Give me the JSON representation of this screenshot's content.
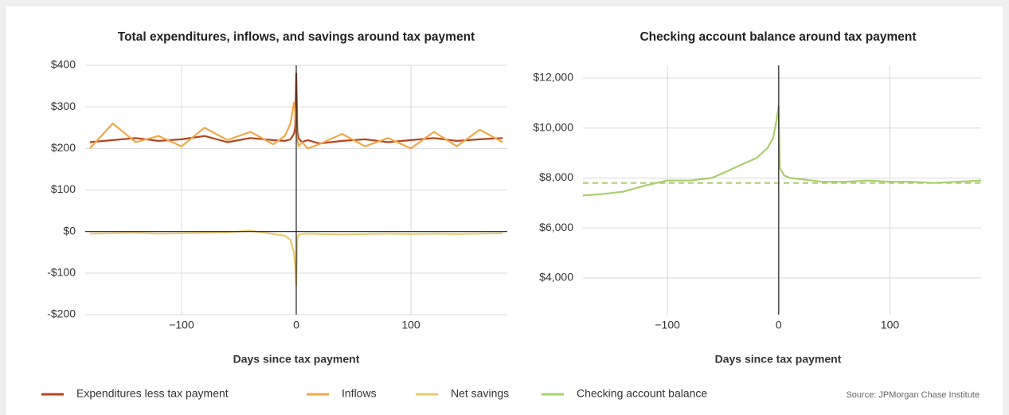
{
  "chart_data": [
    {
      "type": "line",
      "title": "Total expenditures, inflows, and savings around tax payment",
      "x_label": "Days since tax payment",
      "x": [
        -180,
        -160,
        -140,
        -120,
        -100,
        -80,
        -60,
        -40,
        -20,
        -10,
        -5,
        -2,
        -1,
        0,
        1,
        2,
        5,
        10,
        20,
        40,
        60,
        80,
        100,
        120,
        140,
        160,
        180
      ],
      "series": [
        {
          "name": "Expenditures less tax payment",
          "color": "#b5441f",
          "values": [
            215,
            220,
            225,
            218,
            222,
            230,
            215,
            225,
            220,
            218,
            222,
            235,
            250,
            380,
            240,
            225,
            215,
            220,
            212,
            218,
            222,
            215,
            220,
            225,
            218,
            222,
            225
          ]
        },
        {
          "name": "Inflows",
          "color": "#f0a848",
          "values": [
            200,
            260,
            215,
            230,
            205,
            250,
            220,
            240,
            210,
            230,
            260,
            310,
            290,
            240,
            220,
            205,
            215,
            200,
            210,
            235,
            205,
            225,
            200,
            240,
            205,
            245,
            215
          ]
        },
        {
          "name": "Net savings",
          "color": "#ecc96a",
          "values": [
            -5,
            -4,
            -3,
            -5,
            -4,
            -3,
            -2,
            2,
            -6,
            -10,
            -20,
            -50,
            -80,
            -130,
            -15,
            -8,
            -6,
            -5,
            -6,
            -7,
            -6,
            -5,
            -6,
            -5,
            -6,
            -5,
            -4
          ]
        }
      ],
      "xlim": [
        -184,
        184
      ],
      "xticks": [
        {
          "value": -100,
          "label": "−100"
        },
        0,
        100
      ],
      "ylim": [
        -200,
        400
      ],
      "yticks": [
        {
          "value": -200,
          "label": "-$200"
        },
        {
          "value": -100,
          "label": "-$100"
        },
        {
          "value": 0,
          "label": "$0"
        },
        {
          "value": 100,
          "label": "$100"
        },
        {
          "value": 200,
          "label": "$200"
        },
        {
          "value": 300,
          "label": "$300"
        },
        {
          "value": 400,
          "label": "$400"
        }
      ],
      "grid": true
    },
    {
      "type": "line",
      "title": "Checking account balance around tax payment",
      "x_label": "Days since tax payment",
      "x": [
        -176,
        -160,
        -140,
        -120,
        -100,
        -80,
        -60,
        -50,
        -40,
        -30,
        -20,
        -10,
        -5,
        -2,
        0,
        1,
        5,
        10,
        20,
        40,
        60,
        80,
        100,
        120,
        140,
        160,
        182
      ],
      "series": [
        {
          "name": "Checking account balance",
          "color": "#a8cf6b",
          "values": [
            7300,
            7350,
            7450,
            7700,
            7900,
            7900,
            8000,
            8200,
            8400,
            8600,
            8800,
            9200,
            9600,
            10300,
            10900,
            8400,
            8100,
            8000,
            7950,
            7850,
            7850,
            7900,
            7850,
            7850,
            7800,
            7850,
            7900
          ]
        }
      ],
      "reference_line": 7800,
      "xlim": [
        -176,
        182
      ],
      "xticks": [
        {
          "value": -100,
          "label": "−100"
        },
        0,
        100
      ],
      "ylim": [
        2530,
        12510
      ],
      "yticks": [
        {
          "value": 4000,
          "label": "$4,000"
        },
        {
          "value": 6000,
          "label": "$6,000"
        },
        {
          "value": 8000,
          "label": "$8,000"
        },
        {
          "value": 10000,
          "label": "$10,000"
        },
        {
          "value": 12000,
          "label": "$12,000"
        }
      ],
      "grid": true
    }
  ],
  "source": "Source: JPMorgan Chase Institute"
}
